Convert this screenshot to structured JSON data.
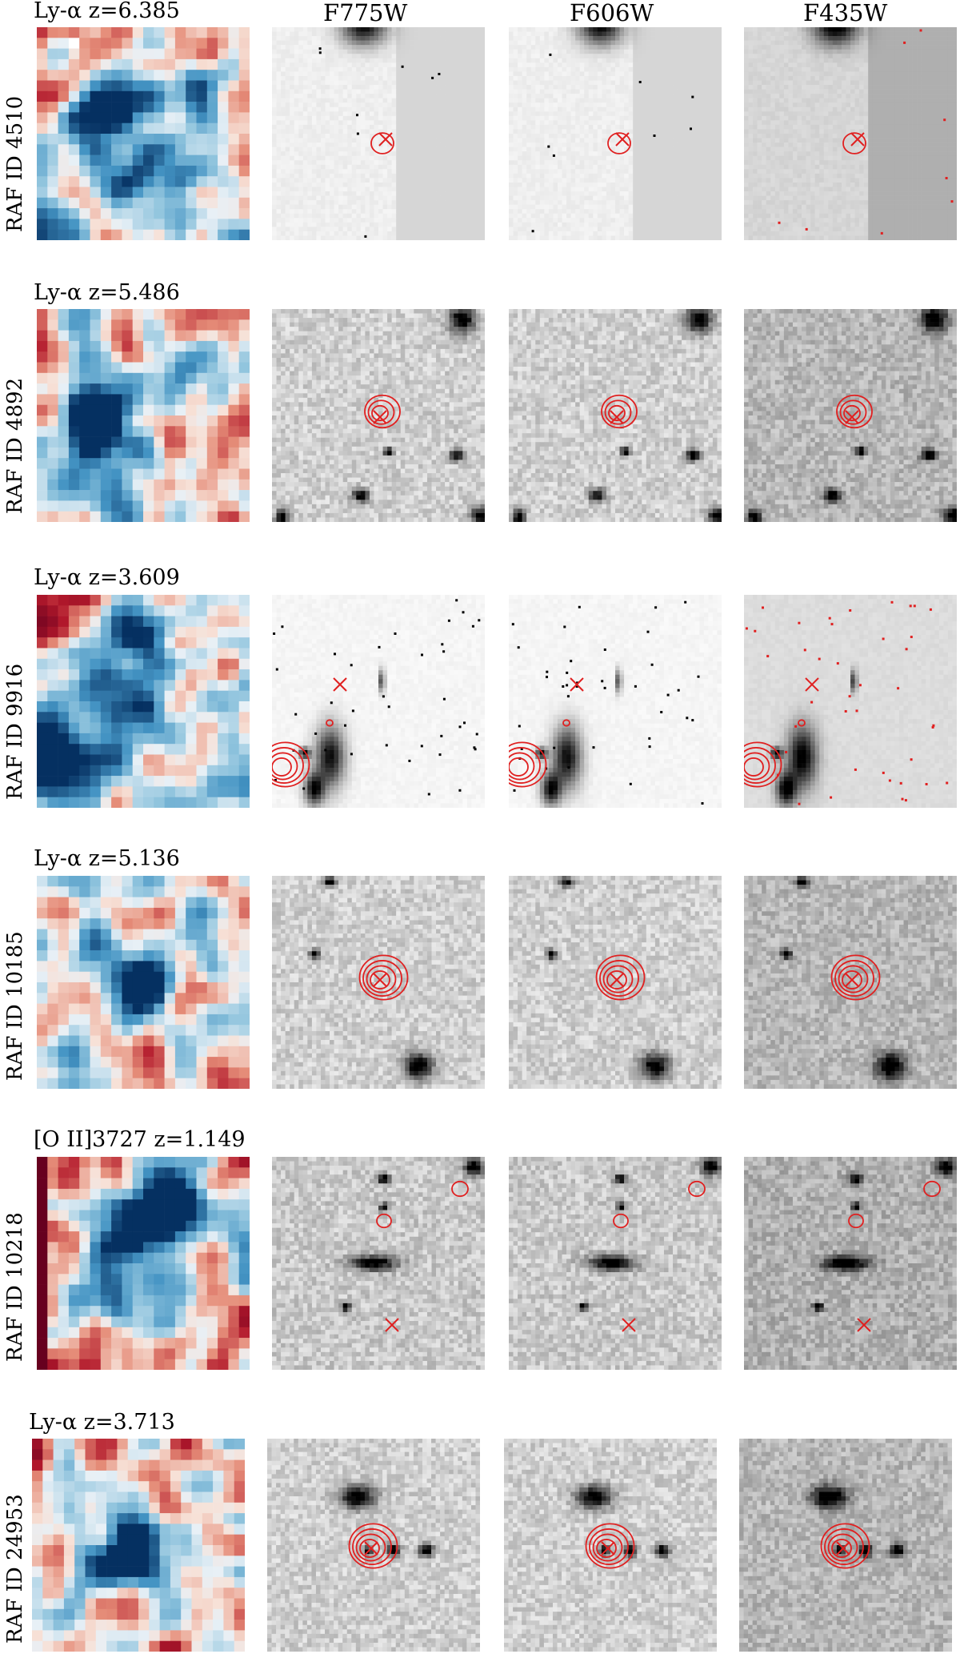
{
  "columns": [
    "",
    "F775W",
    "F606W",
    "F435W"
  ],
  "rows": [
    {
      "id": "RAF ID 4510",
      "line": "Ly-α z=6.385"
    },
    {
      "id": "RAF ID 4892",
      "line": "Ly-α z=5.486"
    },
    {
      "id": "RAF ID 9916",
      "line": "Ly-α z=3.609"
    },
    {
      "id": "RAF ID 10185",
      "line": "Ly-α z=5.136"
    },
    {
      "id": "RAF ID 10218",
      "line": "[O II]3727 z=1.149"
    },
    {
      "id": "RAF ID 24953",
      "line": "Ly-α z=3.713"
    }
  ],
  "colors": {
    "contour": "#e02020",
    "map_low": "#b2182b",
    "map_high": "#2166ac",
    "background": "#ffffff"
  }
}
